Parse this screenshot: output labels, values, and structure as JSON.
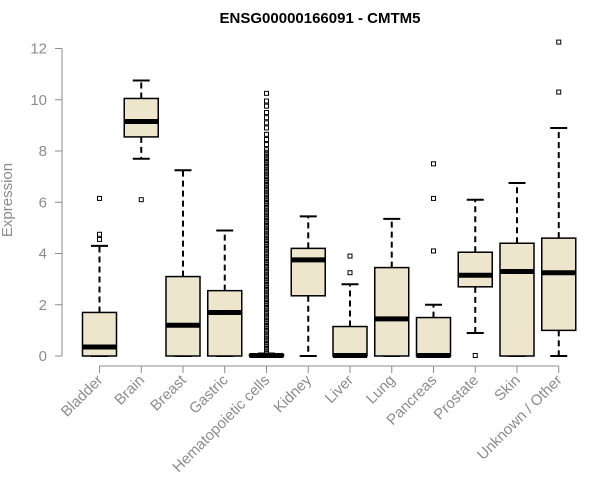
{
  "chart_data": {
    "type": "boxplot",
    "title": "ENSG00000166091 - CMTM5",
    "ylabel": "Expression",
    "xlabel": "",
    "ylim": [
      0,
      12
    ],
    "yticks": [
      0,
      2,
      4,
      6,
      8,
      10,
      12
    ],
    "grid": false,
    "box_color": "#ede6cd",
    "categories": [
      "Bladder",
      "Brain",
      "Breast",
      "Gastric",
      "Hematopoietic cells",
      "Kidney",
      "Liver",
      "Lung",
      "Pancreas",
      "Prostate",
      "Skin",
      "Unknown / Other"
    ],
    "boxes": [
      {
        "whisker_low": 0,
        "q1": 0,
        "median": 0.35,
        "q3": 1.7,
        "whisker_high": 4.3,
        "outliers": [
          4.55,
          4.75,
          6.15
        ]
      },
      {
        "whisker_low": 7.7,
        "q1": 8.55,
        "median": 9.15,
        "q3": 10.05,
        "whisker_high": 10.75,
        "outliers": [
          6.1
        ]
      },
      {
        "whisker_low": 0,
        "q1": 0,
        "median": 1.2,
        "q3": 3.1,
        "whisker_high": 7.25,
        "outliers": []
      },
      {
        "whisker_low": 0,
        "q1": 0,
        "median": 1.7,
        "q3": 2.55,
        "whisker_high": 4.9,
        "outliers": []
      },
      {
        "whisker_low": 0,
        "q1": 0,
        "median": 0.02,
        "q3": 0.05,
        "whisker_high": 0.1,
        "outliers": [
          0.15,
          0.25,
          0.35,
          0.45,
          0.55,
          0.65,
          0.75,
          0.85,
          0.95,
          1.05,
          1.15,
          1.25,
          1.35,
          1.45,
          1.55,
          1.65,
          1.75,
          1.85,
          1.95,
          2.05,
          2.15,
          2.25,
          2.35,
          2.45,
          2.55,
          2.65,
          2.75,
          2.85,
          2.95,
          3.05,
          3.15,
          3.25,
          3.35,
          3.45,
          3.55,
          3.65,
          3.75,
          3.85,
          3.95,
          4.05,
          4.15,
          4.25,
          4.35,
          4.45,
          4.55,
          4.65,
          4.75,
          4.85,
          4.95,
          5.05,
          5.15,
          5.25,
          5.35,
          5.45,
          5.55,
          5.65,
          5.75,
          5.85,
          5.95,
          6.05,
          6.15,
          6.25,
          6.35,
          6.45,
          6.55,
          6.65,
          6.75,
          6.85,
          6.95,
          7.05,
          7.15,
          7.25,
          7.35,
          7.45,
          7.55,
          7.65,
          7.75,
          7.85,
          7.95,
          8.05,
          8.25,
          8.45,
          8.65,
          8.9,
          9.1,
          9.3,
          9.5,
          9.75,
          9.95,
          10.25
        ]
      },
      {
        "whisker_low": 0,
        "q1": 2.35,
        "median": 3.75,
        "q3": 4.2,
        "whisker_high": 5.45,
        "outliers": []
      },
      {
        "whisker_low": 0,
        "q1": 0,
        "median": 0.02,
        "q3": 1.15,
        "whisker_high": 2.8,
        "outliers": [
          3.25,
          3.9
        ]
      },
      {
        "whisker_low": 0,
        "q1": 0,
        "median": 1.45,
        "q3": 3.45,
        "whisker_high": 5.35,
        "outliers": []
      },
      {
        "whisker_low": 0,
        "q1": 0,
        "median": 0.02,
        "q3": 1.5,
        "whisker_high": 2.0,
        "outliers": [
          4.1,
          6.15,
          7.5
        ]
      },
      {
        "whisker_low": 0.9,
        "q1": 2.7,
        "median": 3.15,
        "q3": 4.05,
        "whisker_high": 6.1,
        "outliers": [
          0.02
        ]
      },
      {
        "whisker_low": 0,
        "q1": 0,
        "median": 3.3,
        "q3": 4.4,
        "whisker_high": 6.75,
        "outliers": []
      },
      {
        "whisker_low": 0,
        "q1": 1.0,
        "median": 3.25,
        "q3": 4.6,
        "whisker_high": 8.9,
        "outliers": [
          10.3,
          12.25
        ]
      }
    ]
  }
}
